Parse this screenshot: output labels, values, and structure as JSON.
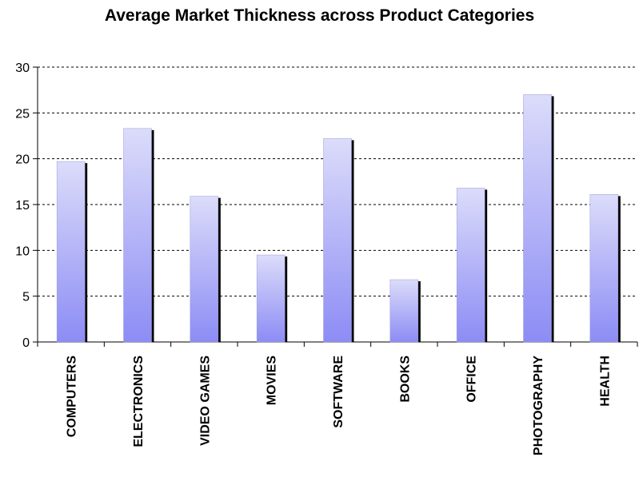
{
  "chart_data": {
    "type": "bar",
    "title": "Average Market Thickness across Product Categories",
    "categories": [
      "COMPUTERS",
      "ELECTRONICS",
      "VIDEO GAMES",
      "MOVIES",
      "SOFTWARE",
      "BOOKS",
      "OFFICE",
      "PHOTOGRAPHY",
      "HEALTH"
    ],
    "values": [
      19.7,
      23.3,
      15.9,
      9.5,
      22.2,
      6.8,
      16.8,
      27.0,
      16.1
    ],
    "xlabel": "",
    "ylabel": "",
    "ylim": [
      0,
      30
    ],
    "yticks": [
      0,
      5,
      10,
      15,
      20,
      25,
      30
    ],
    "grid": true,
    "legend": "none",
    "colors": {
      "bar_top": "#dcdcfa",
      "bar_bottom": "#8c8cf5",
      "bar_shadow": "#000000",
      "grid": "#000000"
    }
  }
}
